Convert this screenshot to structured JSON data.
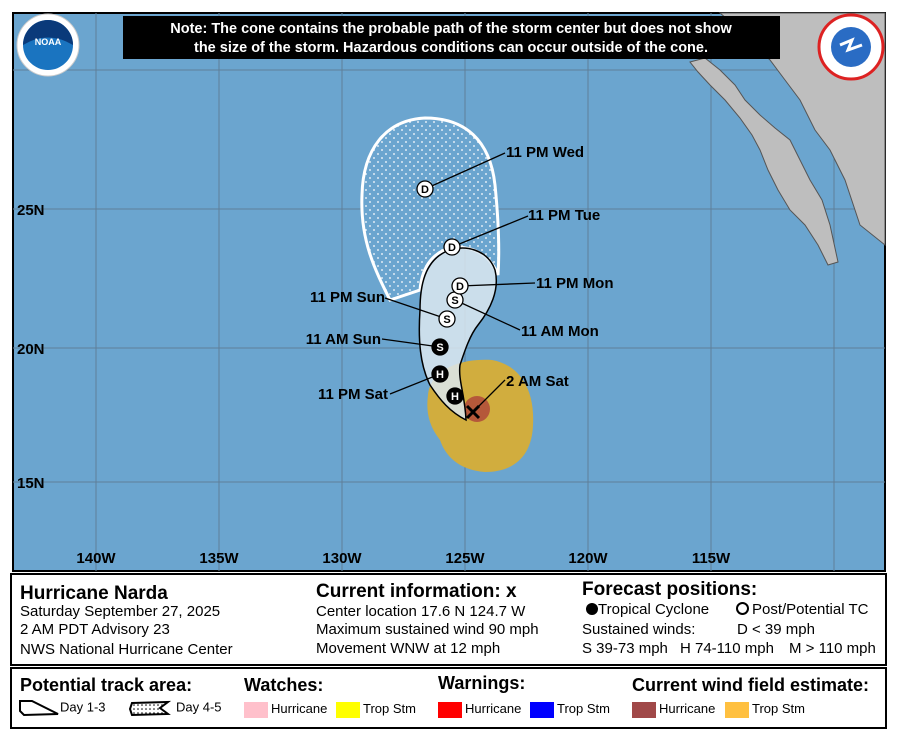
{
  "note": {
    "line1": "Note: The cone contains the probable path of the storm center but does not show",
    "line2": "the size of the storm. Hazardous conditions can occur outside of the cone."
  },
  "logos": {
    "left": "NOAA",
    "right": "NATIONAL WEATHER SERVICE"
  },
  "lat_labels": [
    "25N",
    "20N",
    "15N"
  ],
  "lon_labels": [
    "140W",
    "135W",
    "130W",
    "125W",
    "120W",
    "115W"
  ],
  "forecast_points": [
    {
      "time": "2 AM Sat",
      "symbol": "x"
    },
    {
      "time": "",
      "symbol": "H"
    },
    {
      "time": "11 PM Sat",
      "symbol": "H"
    },
    {
      "time": "11 AM Sun",
      "symbol": "S"
    },
    {
      "time": "11 PM Sun",
      "symbol": "S"
    },
    {
      "time": "11 AM Mon",
      "symbol": "S"
    },
    {
      "time": "11 PM Mon",
      "symbol": "D"
    },
    {
      "time": "11 PM Tue",
      "symbol": "D"
    },
    {
      "time": "11 PM Wed",
      "symbol": "D"
    }
  ],
  "info": {
    "storm_name": "Hurricane Narda",
    "date": "Saturday September 27, 2025",
    "advisory": "2 AM PDT Advisory 23",
    "center": "NWS National Hurricane Center",
    "current_title": "Current information: x",
    "location": "Center location 17.6 N 124.7 W",
    "max_wind": "Maximum sustained wind 90 mph",
    "movement": "Movement WNW at 12 mph",
    "forecast_title": "Forecast positions:",
    "tc": "Tropical Cyclone",
    "post_tc": "Post/Potential TC",
    "sustained": "Sustained winds:",
    "d": "D < 39 mph",
    "s": "S 39-73 mph",
    "h": "H 74-110 mph",
    "m": "M > 110 mph"
  },
  "legend": {
    "track_title": "Potential track area:",
    "day13": "Day 1-3",
    "day45": "Day 4-5",
    "watches_title": "Watches:",
    "warnings_title": "Warnings:",
    "wind_title": "Current wind field estimate:",
    "hurricane": "Hurricane",
    "tropstm": "Trop Stm"
  },
  "colors": {
    "ocean": "#6ba5cf",
    "land": "#bebebe",
    "cone13": "#dce8f0",
    "watch_hurr": "#ffc0cb",
    "watch_ts": "#ffff00",
    "warn_hurr": "#ff0000",
    "warn_ts": "#0000ff",
    "wind_hurr": "#a04848",
    "wind_ts": "#ffc040"
  }
}
